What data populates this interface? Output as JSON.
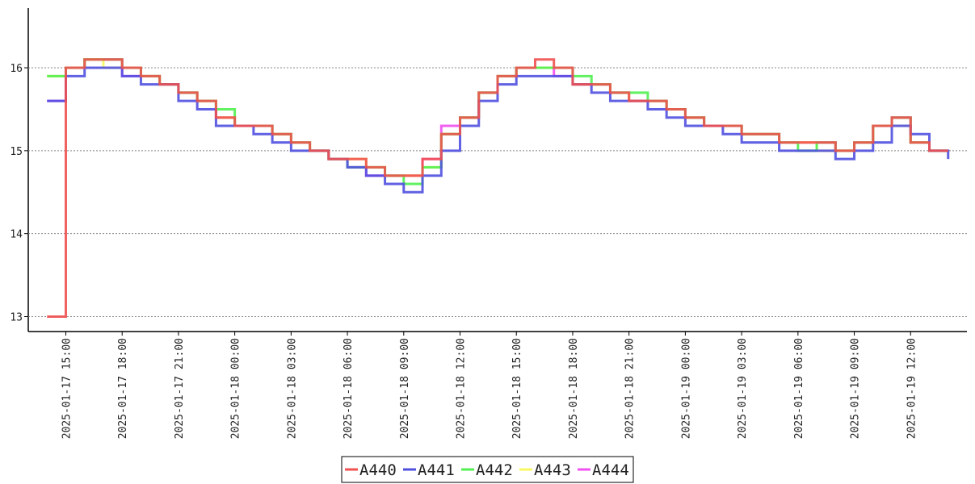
{
  "chart_data": {
    "type": "line",
    "step": "post",
    "grid": true,
    "x": [
      "2025-01-17 14:00",
      "2025-01-17 15:00",
      "2025-01-17 16:00",
      "2025-01-17 17:00",
      "2025-01-17 18:00",
      "2025-01-17 19:00",
      "2025-01-17 20:00",
      "2025-01-17 21:00",
      "2025-01-17 22:00",
      "2025-01-17 23:00",
      "2025-01-18 00:00",
      "2025-01-18 01:00",
      "2025-01-18 02:00",
      "2025-01-18 03:00",
      "2025-01-18 04:00",
      "2025-01-18 05:00",
      "2025-01-18 06:00",
      "2025-01-18 07:00",
      "2025-01-18 08:00",
      "2025-01-18 09:00",
      "2025-01-18 10:00",
      "2025-01-18 11:00",
      "2025-01-18 12:00",
      "2025-01-18 13:00",
      "2025-01-18 14:00",
      "2025-01-18 15:00",
      "2025-01-18 16:00",
      "2025-01-18 17:00",
      "2025-01-18 18:00",
      "2025-01-18 19:00",
      "2025-01-18 20:00",
      "2025-01-18 21:00",
      "2025-01-18 22:00",
      "2025-01-18 23:00",
      "2025-01-19 00:00",
      "2025-01-19 01:00",
      "2025-01-19 02:00",
      "2025-01-19 03:00",
      "2025-01-19 04:00",
      "2025-01-19 05:00",
      "2025-01-19 06:00",
      "2025-01-19 07:00",
      "2025-01-19 08:00",
      "2025-01-19 09:00",
      "2025-01-19 10:00",
      "2025-01-19 11:00",
      "2025-01-19 12:00",
      "2025-01-19 13:00",
      "2025-01-19 14:00"
    ],
    "series": [
      {
        "name": "A444",
        "color": "#f050f0",
        "values": [
          15.6,
          16.0,
          16.1,
          16.1,
          15.9,
          15.9,
          15.8,
          15.7,
          15.6,
          15.4,
          15.3,
          15.3,
          15.2,
          15.1,
          15.0,
          14.9,
          14.8,
          14.7,
          14.7,
          14.7,
          14.9,
          15.3,
          15.4,
          15.7,
          15.9,
          16.0,
          16.0,
          15.9,
          15.8,
          15.8,
          15.7,
          15.6,
          15.6,
          15.5,
          15.4,
          15.3,
          15.3,
          15.2,
          15.2,
          15.1,
          15.1,
          15.1,
          15.0,
          15.1,
          15.3,
          15.4,
          15.1,
          15.0,
          15.0
        ]
      },
      {
        "name": "A443",
        "color": "#f8f860",
        "values": [
          15.9,
          16.0,
          16.1,
          16.0,
          16.0,
          15.9,
          15.8,
          15.7,
          15.6,
          15.4,
          15.3,
          15.3,
          15.2,
          15.1,
          15.0,
          14.9,
          14.9,
          14.8,
          14.7,
          14.7,
          14.8,
          15.2,
          15.4,
          15.7,
          15.9,
          16.0,
          16.0,
          16.0,
          15.8,
          15.8,
          15.7,
          15.6,
          15.6,
          15.5,
          15.4,
          15.3,
          15.3,
          15.2,
          15.2,
          15.1,
          15.1,
          15.0,
          15.0,
          15.1,
          15.3,
          15.3,
          15.1,
          15.0,
          15.0
        ]
      },
      {
        "name": "A442",
        "color": "#50f050",
        "values": [
          15.9,
          16.0,
          16.1,
          16.1,
          16.0,
          15.9,
          15.8,
          15.7,
          15.6,
          15.5,
          15.3,
          15.3,
          15.2,
          15.1,
          15.0,
          14.9,
          14.8,
          14.8,
          14.7,
          14.6,
          14.8,
          15.2,
          15.4,
          15.7,
          15.9,
          16.0,
          16.0,
          16.0,
          15.9,
          15.8,
          15.7,
          15.7,
          15.6,
          15.5,
          15.4,
          15.3,
          15.3,
          15.2,
          15.2,
          15.1,
          15.0,
          15.1,
          15.0,
          15.1,
          15.3,
          15.4,
          15.1,
          15.0,
          15.0
        ]
      },
      {
        "name": "A441",
        "color": "#5050e0",
        "values": [
          15.6,
          15.9,
          16.0,
          16.0,
          15.9,
          15.8,
          15.8,
          15.6,
          15.5,
          15.3,
          15.3,
          15.2,
          15.1,
          15.0,
          15.0,
          14.9,
          14.8,
          14.7,
          14.6,
          14.5,
          14.7,
          15.0,
          15.3,
          15.6,
          15.8,
          15.9,
          15.9,
          15.9,
          15.8,
          15.7,
          15.6,
          15.6,
          15.5,
          15.4,
          15.3,
          15.3,
          15.2,
          15.1,
          15.1,
          15.0,
          15.0,
          15.0,
          14.9,
          15.0,
          15.1,
          15.3,
          15.2,
          15.0,
          14.9
        ]
      },
      {
        "name": "A440",
        "color": "#f05050",
        "values": [
          13.0,
          16.0,
          16.1,
          16.1,
          16.0,
          15.9,
          15.8,
          15.7,
          15.6,
          15.4,
          15.3,
          15.3,
          15.2,
          15.1,
          15.0,
          14.9,
          14.9,
          14.8,
          14.7,
          14.7,
          14.9,
          15.2,
          15.4,
          15.7,
          15.9,
          16.0,
          16.1,
          16.0,
          15.8,
          15.8,
          15.7,
          15.6,
          15.6,
          15.5,
          15.4,
          15.3,
          15.3,
          15.2,
          15.2,
          15.1,
          15.1,
          15.1,
          15.0,
          15.1,
          15.3,
          15.4,
          15.1,
          15.0,
          15.0
        ]
      }
    ],
    "legend_order": [
      "A440",
      "A441",
      "A442",
      "A443",
      "A444"
    ],
    "xlim": [
      "2025-01-17 13:00",
      "2025-01-19 15:00"
    ],
    "xticks": [
      "2025-01-17 15:00",
      "2025-01-17 18:00",
      "2025-01-17 21:00",
      "2025-01-18 00:00",
      "2025-01-18 03:00",
      "2025-01-18 06:00",
      "2025-01-18 09:00",
      "2025-01-18 12:00",
      "2025-01-18 15:00",
      "2025-01-18 18:00",
      "2025-01-18 21:00",
      "2025-01-19 00:00",
      "2025-01-19 03:00",
      "2025-01-19 06:00",
      "2025-01-19 09:00",
      "2025-01-19 12:00"
    ],
    "ylim": [
      12.82,
      16.72
    ],
    "yticks": [
      13,
      14,
      15,
      16
    ]
  }
}
